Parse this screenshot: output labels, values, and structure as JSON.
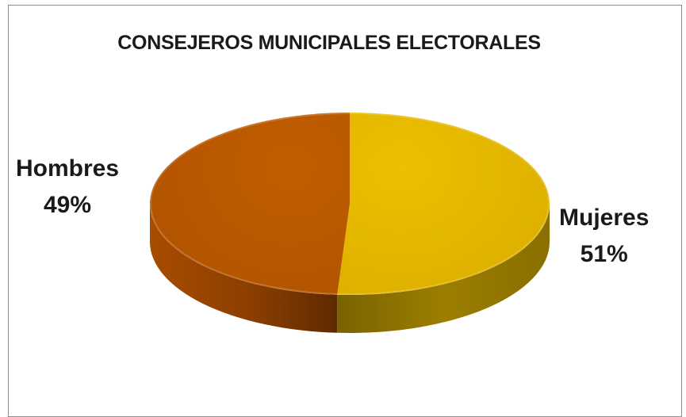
{
  "chart_data": {
    "type": "pie",
    "style": "3d",
    "title": "CONSEJEROS MUNICIPALES ELECTORALES",
    "slices": [
      {
        "name": "Hombres",
        "value": 49,
        "label": "49%",
        "color": "#b85600"
      },
      {
        "name": "Mujeres",
        "value": 51,
        "label": "51%",
        "color": "#e2b200"
      }
    ]
  }
}
